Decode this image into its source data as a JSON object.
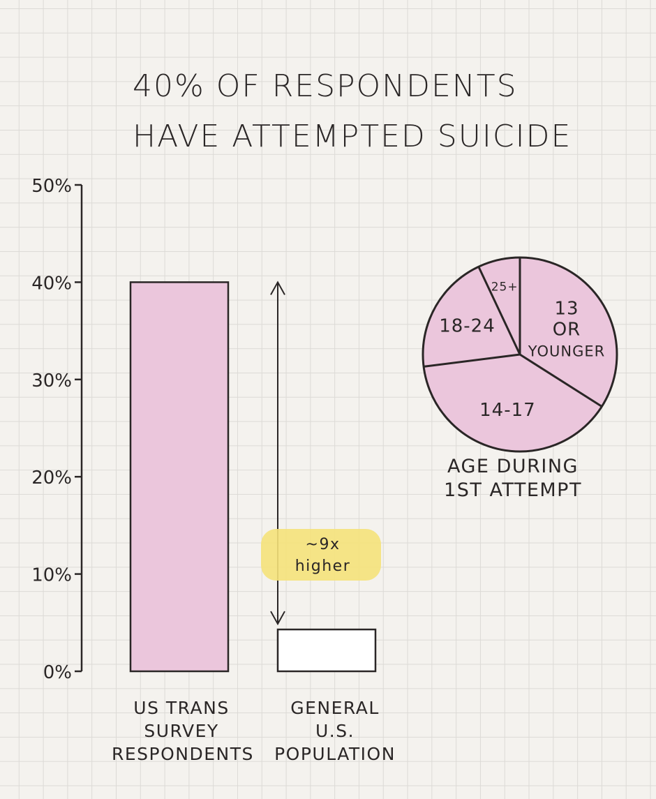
{
  "title": [
    "40% of respondents",
    "have attempted suicide"
  ],
  "chart_data": [
    {
      "type": "bar",
      "categories": [
        "US Trans Survey Respondents",
        "General U.S. Population"
      ],
      "category_lines": [
        [
          "US Trans",
          "Survey",
          "Respondents"
        ],
        [
          "General",
          "U.S.",
          "Population"
        ]
      ],
      "values": [
        40,
        4.3
      ],
      "ylim": [
        0,
        50
      ],
      "yticks": [
        0,
        10,
        20,
        30,
        40,
        50
      ],
      "ytick_labels": [
        "0%",
        "10%",
        "20%",
        "30%",
        "40%",
        "50%"
      ],
      "annotation": [
        "~9x",
        "higher"
      ],
      "colors": [
        "#ebc6dc",
        "#ffffff"
      ],
      "grid": true
    },
    {
      "type": "pie",
      "title_lines": [
        "Age during",
        "1st attempt"
      ],
      "labels": [
        "13 or younger",
        "14-17",
        "18-24",
        "25+"
      ],
      "label_lines": [
        [
          "13",
          "or",
          "younger"
        ],
        [
          "14-17"
        ],
        [
          "18-24"
        ],
        [
          "25+"
        ]
      ],
      "values": [
        34,
        39,
        20,
        7
      ],
      "color": "#ebc6dc"
    }
  ]
}
